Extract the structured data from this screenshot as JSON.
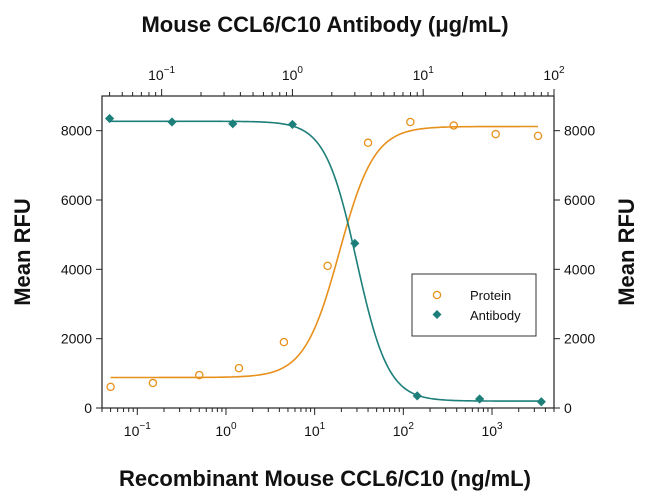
{
  "chart_data": {
    "type": "scatter",
    "top_axis_title": "Mouse CCL6/C10 Antibody (μg/mL)",
    "bottom_axis_title": "Recombinant Mouse CCL6/C10 (ng/mL)",
    "left_axis_title": "Mean RFU",
    "right_axis_title": "Mean RFU",
    "x_scale": "log",
    "x_range_ng_ml": [
      0.04,
      5000
    ],
    "x_top_range_ug_ml": [
      0.035,
      100
    ],
    "y_range": [
      0,
      9000
    ],
    "y_ticks": [
      "0",
      "2000",
      "4000",
      "6000",
      "8000"
    ],
    "x_bottom_ticks": [
      {
        "base": "10",
        "exp": "−1",
        "value": 0.1
      },
      {
        "base": "10",
        "exp": "0",
        "value": 1
      },
      {
        "base": "10",
        "exp": "1",
        "value": 10
      },
      {
        "base": "10",
        "exp": "2",
        "value": 100
      },
      {
        "base": "10",
        "exp": "3",
        "value": 1000
      }
    ],
    "x_top_ticks": [
      {
        "base": "10",
        "exp": "−1",
        "value": 0.1
      },
      {
        "base": "10",
        "exp": "0",
        "value": 1
      },
      {
        "base": "10",
        "exp": "1",
        "value": 10
      },
      {
        "base": "10",
        "exp": "2",
        "value": 100
      }
    ],
    "legend_position": "inside-right",
    "series": [
      {
        "name": "Protein",
        "axis": "bottom",
        "marker": "open-circle",
        "color": "#e8901c",
        "x": [
          0.05,
          0.15,
          0.5,
          1.4,
          4.5,
          14,
          40,
          120,
          370,
          1100,
          3300
        ],
        "y": [
          610,
          720,
          950,
          1150,
          1900,
          4100,
          7650,
          8250,
          8150,
          7900,
          7850
        ]
      },
      {
        "name": "Antibody",
        "axis": "top",
        "marker": "filled-diamond",
        "color": "#1d7f7a",
        "x": [
          0.04,
          0.12,
          0.35,
          1.0,
          3.0,
          9.0,
          27,
          80
        ],
        "y": [
          8350,
          8250,
          8200,
          8180,
          4750,
          350,
          260,
          180
        ]
      }
    ]
  }
}
